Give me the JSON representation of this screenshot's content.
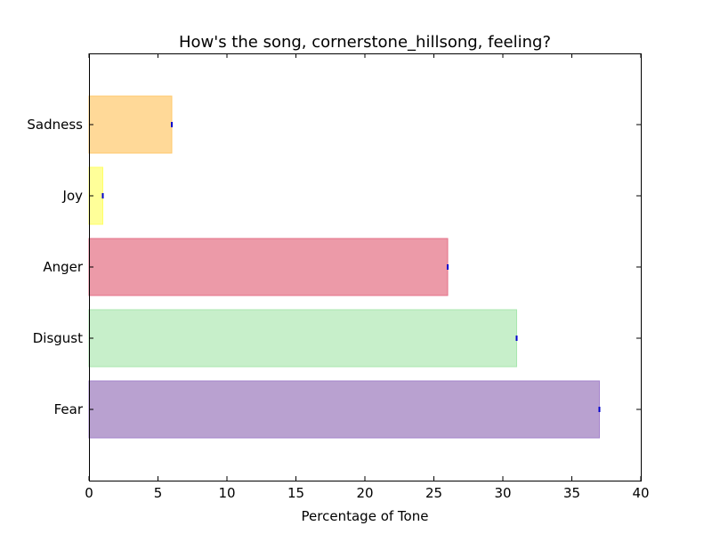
{
  "chart_data": {
    "type": "bar",
    "orientation": "horizontal",
    "title": "How's the song, cornerstone_hillsong, feeling?",
    "xlabel": "Percentage of Tone",
    "ylabel": "",
    "xlim": [
      0,
      40
    ],
    "xticks": [
      "0",
      "5",
      "10",
      "15",
      "20",
      "25",
      "30",
      "35",
      "40"
    ],
    "grid": false,
    "categories": [
      "Fear",
      "Disgust",
      "Anger",
      "Joy",
      "Sadness"
    ],
    "values": [
      37,
      31,
      26,
      1,
      6
    ],
    "colors": [
      "#B9A1D0",
      "#C7EFCA",
      "#EC9AA8",
      "#FFFF99",
      "#FFD998"
    ],
    "edge_colors": [
      "#A585CC",
      "#A8E7AF",
      "#E47189",
      "#FFFF66",
      "#FFC86B"
    ],
    "error_marker_color": "#0000CC"
  }
}
